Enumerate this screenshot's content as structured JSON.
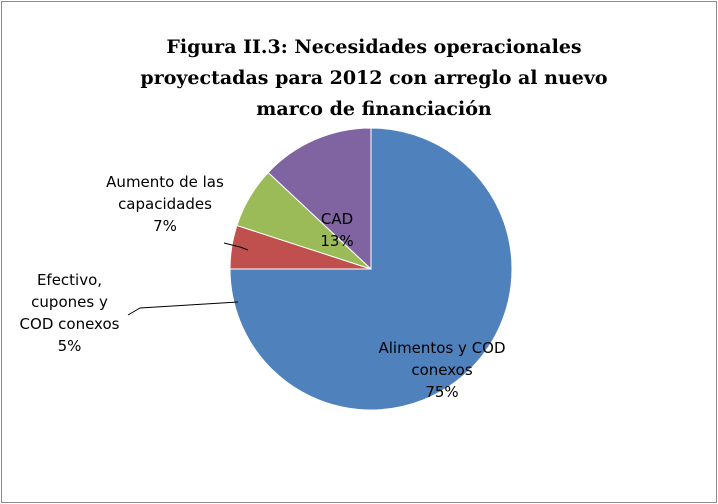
{
  "chart_data": {
    "type": "pie",
    "title": "Figura II.3: Necesidades operacionales proyectadas para 2012 con arreglo al nuevo marco de financiación",
    "categories": [
      "Alimentos y COD conexos",
      "Efectivo, cupones y COD conexos",
      "Aumento de las capacidades",
      "CAD"
    ],
    "values": [
      75,
      5,
      7,
      13
    ],
    "value_labels": [
      "75%",
      "5%",
      "7%",
      "13%"
    ],
    "colors": [
      "#4f81bd",
      "#c0504d",
      "#9bbb59",
      "#8064a2"
    ]
  }
}
